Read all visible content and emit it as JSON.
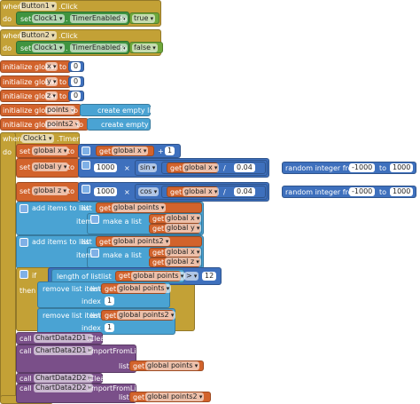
{
  "blocks": [
    [
      "when",
      "Button1",
      ".Click",
      "do",
      "set",
      "Clock1",
      ".",
      "TimerEnabled",
      "to",
      "true"
    ],
    [
      "when",
      "Button2",
      ".Click",
      "do",
      "set",
      "Clock1",
      ".",
      "TimerEnabled",
      "to",
      "false"
    ],
    [
      "initialize global",
      "x",
      "to",
      0
    ],
    [
      "initialize global",
      "y",
      "to",
      0
    ],
    [
      "initialize global",
      "z",
      "to",
      0
    ],
    [
      "initialize global",
      "points",
      "to",
      "create empty list"
    ],
    [
      "initialize global",
      "points2",
      "to",
      "create empty list"
    ],
    [
      "when",
      "Clock1",
      ".Timer",
      "do"
    ],
    [
      "set",
      "global x",
      "to",
      "get",
      "global x",
      "+",
      1
    ],
    [
      "set",
      "global y",
      "to",
      1000,
      "×",
      "sin",
      "get",
      "global x",
      "/",
      0.04
    ],
    [
      "random integer from",
      -1000,
      "to",
      1000
    ],
    [
      "set",
      "global z",
      "to",
      1000,
      "×",
      "cos",
      "get",
      "global x",
      "/",
      0.04
    ],
    [
      "random integer from",
      -1000,
      "to",
      1000
    ],
    [
      "add items to list",
      "list",
      "get",
      "global points",
      "item",
      "make a list",
      "get",
      "global x",
      "get",
      "global y"
    ],
    [
      "add items to list",
      "list",
      "get",
      "global points2",
      "item",
      "make a list",
      "get",
      "global x",
      "get",
      "global z"
    ],
    [
      "if",
      "length of list",
      "list",
      "get",
      "global points",
      ">",
      12,
      "then",
      "remove list item",
      "list",
      "get",
      "global points",
      "index",
      1,
      "remove list item",
      "list",
      "get",
      "global points2",
      "index",
      1
    ],
    [
      "call",
      "ChartData2D1",
      ".Clear"
    ],
    [
      "call",
      "ChartData2D1",
      ".ImportFromList",
      "list",
      "get",
      "global points"
    ],
    [
      "call",
      "ChartData2D2",
      ".Clear"
    ],
    [
      "call",
      "ChartData2D2",
      ".ImportFromList",
      "list",
      "get",
      "global points2"
    ]
  ]
}
